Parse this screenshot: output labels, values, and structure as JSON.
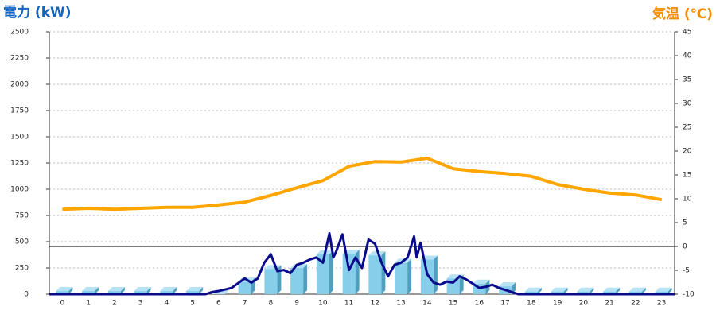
{
  "chart_data": {
    "type": "combo",
    "title_left": "電力 (kW)",
    "title_right": "気温 (℃)",
    "categories": [
      "0",
      "1",
      "2",
      "3",
      "4",
      "5",
      "6",
      "7",
      "8",
      "9",
      "10",
      "11",
      "12",
      "13",
      "14",
      "15",
      "16",
      "17",
      "18",
      "19",
      "20",
      "21",
      "22",
      "23"
    ],
    "ylim": [
      0,
      2500
    ],
    "yticks": [
      0,
      250,
      500,
      750,
      1000,
      1250,
      1500,
      1750,
      2000,
      2250,
      2500
    ],
    "y2lim": [
      -10,
      45
    ],
    "y2ticks": [
      -10,
      -5,
      0,
      5,
      10,
      15,
      20,
      25,
      30,
      35,
      40,
      45
    ],
    "grid": true,
    "series": [
      {
        "type": "bar",
        "color": "#87ceeb",
        "values": [
          30,
          30,
          30,
          30,
          30,
          30,
          0,
          120,
          240,
          250,
          380,
          385,
          370,
          300,
          330,
          150,
          100,
          75,
          25,
          25,
          25,
          25,
          25,
          25
        ]
      },
      {
        "type": "line",
        "color": "#0a0a8c",
        "x": [
          -0.5,
          5.5,
          5.75,
          6,
          6.5,
          7,
          7.25,
          7.5,
          7.75,
          8,
          8.25,
          8.5,
          8.75,
          9,
          9.25,
          9.5,
          9.75,
          10,
          10.25,
          10.4,
          10.5,
          10.75,
          11,
          11.25,
          11.5,
          11.75,
          12,
          12.25,
          12.5,
          12.75,
          13,
          13.25,
          13.5,
          13.6,
          13.75,
          14,
          14.25,
          14.5,
          14.75,
          15,
          15.25,
          15.5,
          15.75,
          16,
          16.25,
          16.5,
          16.75,
          17,
          17.25,
          17.5,
          23.5
        ],
        "values": [
          0,
          0,
          20,
          30,
          60,
          150,
          110,
          150,
          300,
          380,
          220,
          230,
          200,
          280,
          300,
          330,
          350,
          300,
          580,
          350,
          400,
          570,
          230,
          350,
          250,
          520,
          480,
          300,
          170,
          280,
          300,
          350,
          550,
          350,
          490,
          190,
          110,
          90,
          120,
          110,
          170,
          140,
          100,
          60,
          70,
          90,
          60,
          40,
          20,
          0,
          0
        ]
      },
      {
        "type": "line",
        "axis": "y2",
        "color": "#ffa500",
        "values": [
          7.8,
          8.0,
          7.8,
          8.0,
          8.2,
          8.2,
          8.7,
          9.3,
          10.7,
          12.3,
          13.8,
          16.8,
          17.8,
          17.7,
          18.5,
          16.3,
          15.7,
          15.3,
          14.7,
          13.0,
          12.0,
          11.2,
          10.8,
          9.8
        ]
      }
    ]
  }
}
